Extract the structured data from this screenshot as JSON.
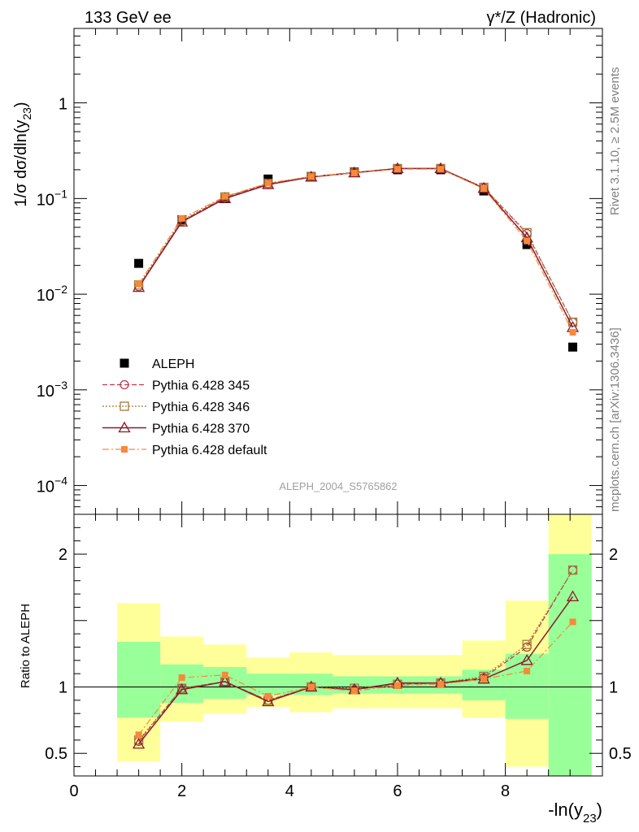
{
  "header": {
    "left_title": "133 GeV ee",
    "right_title": "γ*/Z (Hadronic)"
  },
  "side_notes": {
    "rivet": "Rivet 3.1.10, ≥ 2.5M events",
    "mcplots": "mcplots.cern.ch [arXiv:1306.3436]"
  },
  "watermark": "ALEPH_2004_S5765862",
  "colors": {
    "data": "#000000",
    "p345": "#c0394b",
    "p346": "#a07a3a",
    "p370": "#8b1a2b",
    "pdefault": "#f58a3a",
    "band_inner": "#99ff99",
    "band_outer": "#ffff99"
  },
  "chart_data": [
    {
      "type": "line",
      "title": "",
      "xlabel": "",
      "ylabel": "1/σ dσ/dln(y23)",
      "yscale": "log",
      "xlim": [
        0,
        9.8
      ],
      "ylim": [
        5e-05,
        6
      ],
      "yticks": [
        {
          "v": 0.0001,
          "base": "10",
          "exp": "−4"
        },
        {
          "v": 0.001,
          "base": "10",
          "exp": "−3"
        },
        {
          "v": 0.01,
          "base": "10",
          "exp": "−2"
        },
        {
          "v": 0.1,
          "base": "10",
          "exp": "−1"
        },
        {
          "v": 1,
          "base": "1",
          "exp": ""
        }
      ],
      "legend_position": "lower-left",
      "x": [
        1.2,
        2.0,
        2.8,
        3.6,
        4.4,
        5.2,
        6.0,
        6.8,
        7.6,
        8.4,
        9.25
      ],
      "series": [
        {
          "name": "ALEPH",
          "key": "data",
          "marker": "filled-square",
          "line": "none",
          "values": [
            0.021,
            0.06,
            0.1,
            0.16,
            0.17,
            0.19,
            0.2,
            0.2,
            0.12,
            0.033,
            0.0028
          ]
        },
        {
          "name": "Pythia 6.428 345",
          "key": "p345",
          "marker": "open-circle",
          "line": "dashed",
          "values": [
            0.012,
            0.058,
            0.103,
            0.143,
            0.169,
            0.187,
            0.205,
            0.205,
            0.13,
            0.043,
            0.0051
          ]
        },
        {
          "name": "Pythia 6.428 346",
          "key": "p346",
          "marker": "open-square",
          "line": "dotted",
          "values": [
            0.0125,
            0.059,
            0.104,
            0.144,
            0.17,
            0.188,
            0.206,
            0.206,
            0.131,
            0.044,
            0.0051
          ]
        },
        {
          "name": "Pythia 6.428 370",
          "key": "p370",
          "marker": "open-triangle",
          "line": "solid",
          "values": [
            0.0118,
            0.057,
            0.1,
            0.14,
            0.168,
            0.186,
            0.206,
            0.206,
            0.128,
            0.039,
            0.0045
          ]
        },
        {
          "name": "Pythia 6.428 default",
          "key": "pdefault",
          "marker": "filled-small-square",
          "line": "dashdot",
          "values": [
            0.0128,
            0.062,
            0.105,
            0.145,
            0.17,
            0.185,
            0.203,
            0.203,
            0.127,
            0.036,
            0.004
          ]
        }
      ]
    },
    {
      "type": "line",
      "title": "",
      "xlabel": "-ln(y23)",
      "ylabel": "Ratio to ALEPH",
      "xlim": [
        0,
        9.8
      ],
      "ylim": [
        0.33,
        2.3
      ],
      "xticks": [
        0,
        2,
        4,
        6,
        8
      ],
      "yticks": [
        0.5,
        1,
        2
      ],
      "reference_line": 1,
      "bands": {
        "edges": [
          0.8,
          1.6,
          2.4,
          3.2,
          4.0,
          4.8,
          5.6,
          6.4,
          7.2,
          8.0,
          8.8,
          9.6
        ],
        "inner": [
          [
            0.77,
            1.34
          ],
          [
            0.88,
            1.17
          ],
          [
            0.91,
            1.15
          ],
          [
            0.94,
            1.1
          ],
          [
            0.94,
            1.1
          ],
          [
            0.95,
            1.08
          ],
          [
            0.95,
            1.08
          ],
          [
            0.95,
            1.08
          ],
          [
            0.9,
            1.13
          ],
          [
            0.76,
            1.25
          ],
          [
            0.33,
            2.0
          ]
        ],
        "outer": [
          [
            0.44,
            1.63
          ],
          [
            0.74,
            1.38
          ],
          [
            0.8,
            1.32
          ],
          [
            0.85,
            1.22
          ],
          [
            0.81,
            1.26
          ],
          [
            0.84,
            1.24
          ],
          [
            0.84,
            1.24
          ],
          [
            0.84,
            1.24
          ],
          [
            0.77,
            1.35
          ],
          [
            0.4,
            1.65
          ],
          [
            0.33,
            2.3
          ]
        ]
      },
      "x": [
        1.2,
        2.0,
        2.8,
        3.6,
        4.4,
        5.2,
        6.0,
        6.8,
        7.6,
        8.4,
        9.25
      ],
      "series": [
        {
          "name": "Pythia 6.428 345",
          "key": "p345",
          "values": [
            0.59,
            0.99,
            1.04,
            0.9,
            1.0,
            0.98,
            1.02,
            1.03,
            1.07,
            1.3,
            1.88
          ]
        },
        {
          "name": "Pythia 6.428 346",
          "key": "p346",
          "values": [
            0.6,
            0.99,
            1.04,
            0.9,
            1.0,
            0.99,
            1.02,
            1.03,
            1.08,
            1.32,
            1.88
          ]
        },
        {
          "name": "Pythia 6.428 370",
          "key": "p370",
          "values": [
            0.57,
            0.98,
            1.04,
            0.89,
            1.0,
            0.98,
            1.03,
            1.03,
            1.06,
            1.2,
            1.68
          ]
        },
        {
          "name": "Pythia 6.428 default",
          "key": "pdefault",
          "values": [
            0.64,
            1.07,
            1.09,
            0.93,
            1.0,
            0.97,
            1.01,
            1.02,
            1.06,
            1.12,
            1.49
          ]
        }
      ]
    }
  ]
}
